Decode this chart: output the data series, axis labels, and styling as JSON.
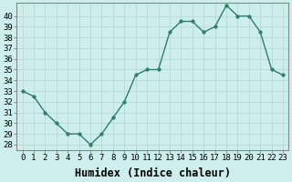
{
  "x": [
    0,
    1,
    2,
    3,
    4,
    5,
    6,
    7,
    8,
    9,
    10,
    11,
    12,
    13,
    14,
    15,
    16,
    17,
    18,
    19,
    20,
    21,
    22,
    23
  ],
  "y": [
    33,
    32.5,
    31,
    30,
    29,
    29,
    28,
    29,
    30.5,
    32,
    34.5,
    35,
    35,
    38.5,
    39.5,
    39.5,
    38.5,
    39,
    41,
    40,
    40,
    38.5,
    35,
    34.5
  ],
  "line_color": "#2e7d6e",
  "marker_color": "#2e7d6e",
  "bg_color": "#cdeeed",
  "grid_color": "#b8dcd8",
  "xlabel": "Humidex (Indice chaleur)",
  "ylim_min": 27.5,
  "ylim_max": 41.2,
  "xlim_min": -0.5,
  "xlim_max": 23.5,
  "yticks": [
    28,
    29,
    30,
    31,
    32,
    33,
    34,
    35,
    36,
    37,
    38,
    39,
    40
  ],
  "xticks": [
    0,
    1,
    2,
    3,
    4,
    5,
    6,
    7,
    8,
    9,
    10,
    11,
    12,
    13,
    14,
    15,
    16,
    17,
    18,
    19,
    20,
    21,
    22,
    23
  ],
  "tick_label_size": 6.5,
  "xlabel_fontsize": 8.5,
  "label_color": "#000000",
  "spine_color": "#888888",
  "linewidth": 1.0,
  "markersize": 2.5
}
